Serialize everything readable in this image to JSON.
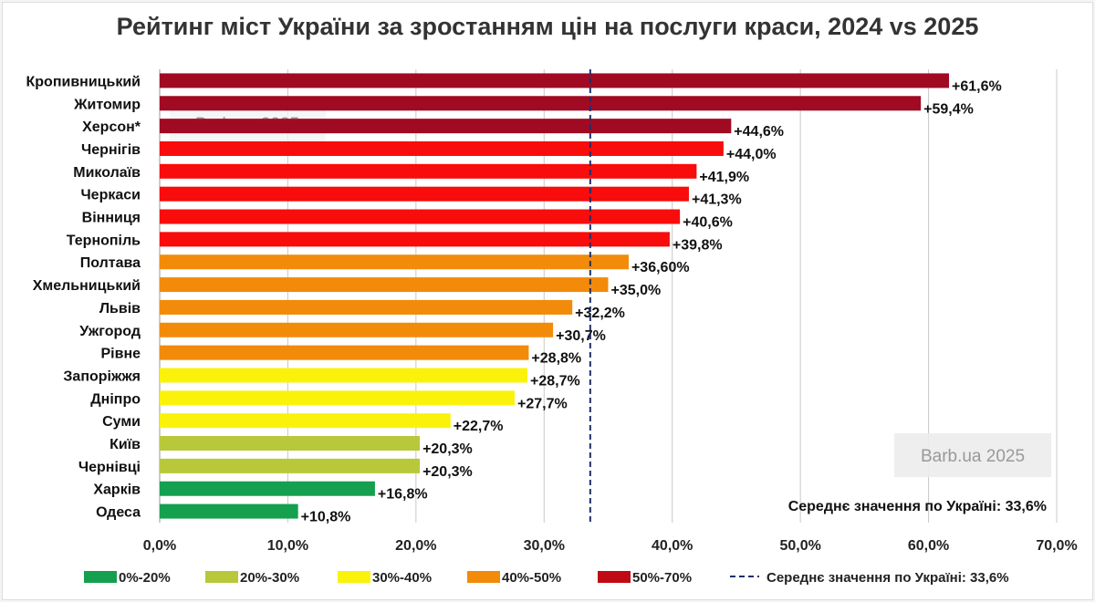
{
  "chart_data": {
    "type": "bar",
    "orientation": "horizontal",
    "title": "Рейтинг міст України за зростанням цін на послуги краси, 2024 vs 2025",
    "categories": [
      "Кропивницький",
      "Житомир",
      "Херсон*",
      "Чернігів",
      "Миколаїв",
      "Черкаси",
      "Вінниця",
      "Тернопіль",
      "Полтава",
      "Хмельницький",
      "Львів",
      "Ужгород",
      "Рівне",
      "Запоріжжя",
      "Дніпро",
      "Суми",
      "Київ",
      "Чернівці",
      "Харків",
      "Одеса"
    ],
    "values": [
      61.6,
      59.4,
      44.6,
      44.0,
      41.9,
      41.3,
      40.6,
      39.8,
      36.6,
      35.0,
      32.2,
      30.7,
      28.8,
      28.7,
      27.7,
      22.7,
      20.3,
      20.3,
      16.8,
      10.8
    ],
    "data_labels": [
      "+61,6%",
      "+59,4%",
      "+44,6%",
      "+44,0%",
      "+41,9%",
      "+41,3%",
      "+40,6%",
      "+39,8%",
      "+36,60%",
      "+35,0%",
      "+32,2%",
      "+30,7%",
      "+28,8%",
      "+28,7%",
      "+27,7%",
      "+22,7%",
      "+20,3%",
      "+20,3%",
      "+16,8%",
      "+10,8%"
    ],
    "bar_color_groups": [
      "50%-70%",
      "50%-70%",
      "50%-70%",
      "40%-50%r",
      "40%-50%r",
      "40%-50%r",
      "40%-50%r",
      "40%-50%r",
      "orange",
      "orange",
      "orange",
      "orange",
      "orange",
      "30%-40%",
      "30%-40%",
      "30%-40%",
      "20%-30%",
      "20%-30%",
      "0%-20%",
      "0%-20%"
    ],
    "bar_colors": [
      "#a00a22",
      "#a00a22",
      "#a00a22",
      "#f80c0c",
      "#f80c0c",
      "#f80c0c",
      "#f80c0c",
      "#f80c0c",
      "#f28a0a",
      "#f28a0a",
      "#f28a0a",
      "#f28a0a",
      "#f28a0a",
      "#fbf20c",
      "#fbf20c",
      "#fbf20c",
      "#b8c83a",
      "#b8c83a",
      "#14a04e",
      "#14a04e"
    ],
    "xlim": [
      0,
      70
    ],
    "x_ticks": [
      "0,0%",
      "10,0%",
      "20,0%",
      "30,0%",
      "40,0%",
      "50,0%",
      "60,0%",
      "70,0%"
    ],
    "grid": true,
    "average": {
      "value": 33.6,
      "label": "Середнє значення по Україні: 33,6%",
      "color": "#1f2f6a"
    },
    "legend": {
      "placement": "bottom",
      "items": [
        {
          "label": "0%-20%",
          "color": "#14a04e"
        },
        {
          "label": "20%-30%",
          "color": "#b8c83a"
        },
        {
          "label": "30%-40%",
          "color": "#fbf20c"
        },
        {
          "label": "40%-50%",
          "color": "#f28a0a"
        },
        {
          "label": "50%-70%",
          "color": "#c00a14"
        }
      ],
      "avg_label": "Середнє значення по Україні: 33,6%"
    },
    "watermark": "Barb.ua 2025"
  }
}
